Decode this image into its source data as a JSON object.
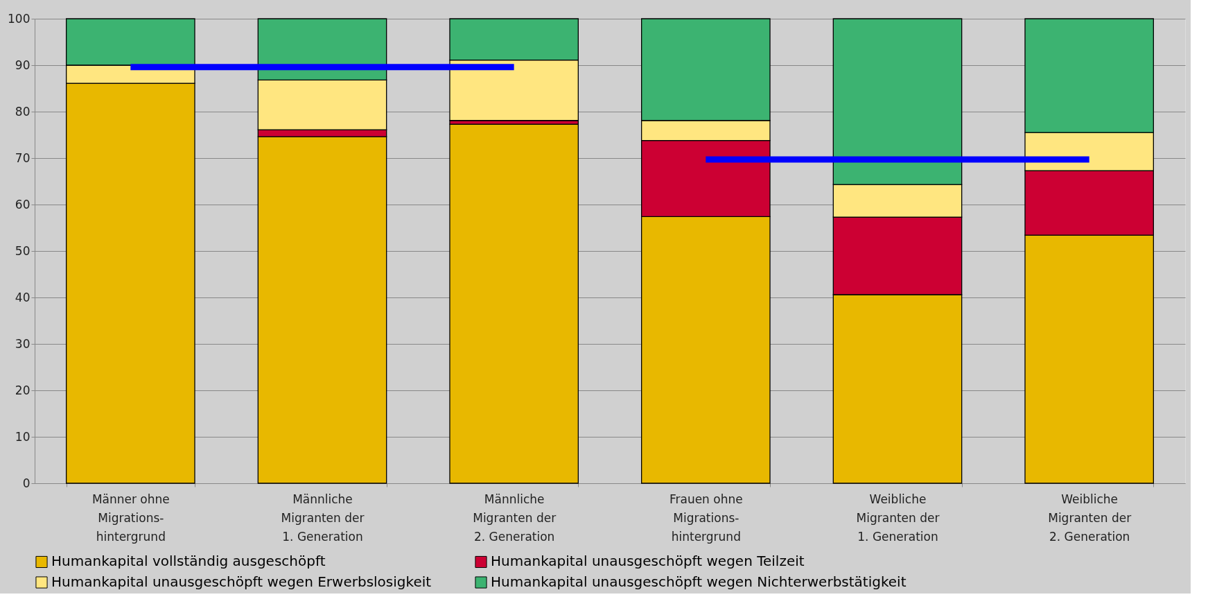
{
  "chart_data": {
    "type": "bar",
    "stacked": true,
    "categories": [
      "Männer ohne\nMigrations-\nhintergrund",
      "Männliche\nMigranten der\n1. Generation",
      "Männliche\nMigranten der\n2. Generation",
      "Frauen ohne\nMigrations-\nhintergrund",
      "Weibliche\nMigranten der\n1. Generation",
      "Weibliche\nMigranten der\n2. Generation"
    ],
    "series": [
      {
        "name": "Humankapital vollständig ausgeschöpft",
        "color": "#e8b800",
        "values": [
          86.1,
          74.6,
          77.3,
          57.4,
          40.6,
          53.4
        ]
      },
      {
        "name": "Humankapital unausgeschöpft wegen Teilzeit",
        "color": "#cc0033",
        "values": [
          0,
          1.5,
          0.8,
          16.4,
          16.7,
          13.9
        ]
      },
      {
        "name": "Humankapital unausgeschöpft wegen Erwerbslosigkeit",
        "color": "#ffe680",
        "values": [
          3.9,
          10.7,
          13.0,
          4.3,
          7.0,
          8.2
        ]
      },
      {
        "name": "Humankapital unausgeschöpft wegen Nichterwerbstätigkeit",
        "color": "#3cb371",
        "values": [
          10.0,
          13.2,
          8.9,
          21.9,
          35.7,
          24.5
        ]
      },
      {
        "type": "line",
        "color": "#0000ff",
        "values": [
          89.6,
          89.6,
          89.6,
          null,
          null,
          null
        ]
      },
      {
        "type": "line",
        "color": "#0000ff",
        "values": [
          null,
          null,
          null,
          69.7,
          69.7,
          69.7
        ]
      }
    ],
    "ylim": [
      0,
      100
    ],
    "yticks": [
      0,
      10,
      20,
      30,
      40,
      50,
      60,
      70,
      80,
      90,
      100
    ],
    "grid": "y",
    "legend": "bottom"
  }
}
